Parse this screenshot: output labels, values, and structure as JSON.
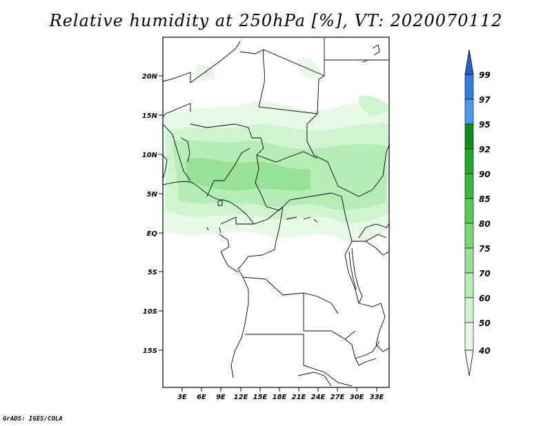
{
  "title": "Relative humidity at 250hPa [%], VT: 2020070112",
  "credit": "GrADS: IGES/COLA",
  "map": {
    "lon_range": [
      0,
      35
    ],
    "lat_range": [
      -20,
      25
    ],
    "lat_labels": [
      "20N",
      "15N",
      "10N",
      "5N",
      "EQ",
      "5S",
      "10S",
      "15S"
    ],
    "lon_labels": [
      "3E",
      "6E",
      "9E",
      "12E",
      "15E",
      "18E",
      "21E",
      "24E",
      "27E",
      "30E",
      "33E"
    ],
    "lat_ticks": [
      20,
      15,
      10,
      5,
      0,
      -5,
      -10,
      -15
    ],
    "lon_ticks": [
      3,
      6,
      9,
      12,
      15,
      18,
      21,
      24,
      27,
      30,
      33
    ]
  },
  "colorbar": {
    "levels": [
      "99",
      "97",
      "95",
      "92",
      "90",
      "85",
      "80",
      "75",
      "70",
      "60",
      "50",
      "40"
    ],
    "colors": [
      "#2166c8",
      "#2f7fe0",
      "#4a9af0",
      "#10901a",
      "#22a82a",
      "#38bb3c",
      "#55cc55",
      "#78d878",
      "#98e298",
      "#b6ecb6",
      "#d0f4d0",
      "#e6fae6"
    ]
  },
  "colors": {
    "light_green": "#e6fae6",
    "mid_green": "#d0f4d0",
    "green": "#b6ecb6"
  }
}
